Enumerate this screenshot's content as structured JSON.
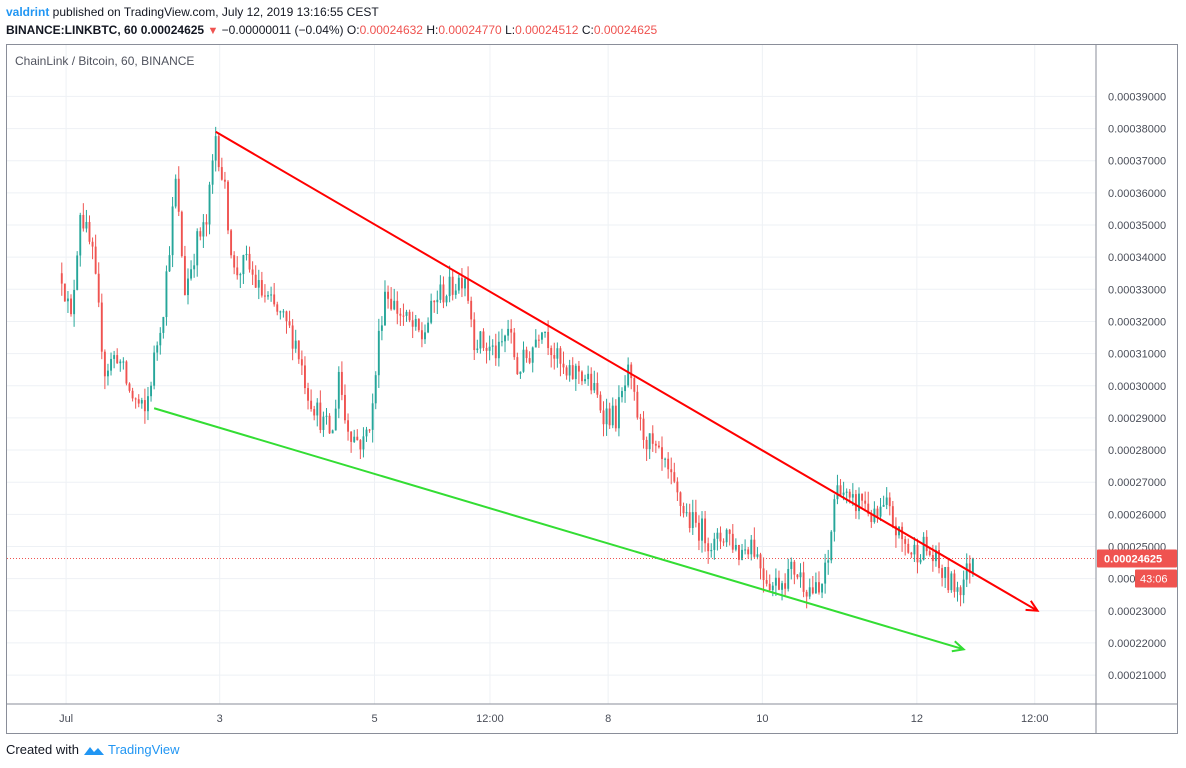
{
  "header": {
    "author": "valdrint",
    "published": " published on TradingView.com, July 12, 2019 13:16:55 CEST"
  },
  "quote": {
    "symbol": "BINANCE:LINKBTC, 60",
    "last": "0.00024625",
    "down_arrow": "▼",
    "change": "−0.00000011 (−0.04%)",
    "o_label": "O:",
    "o": "0.00024632",
    "h_label": "H:",
    "h": "0.00024770",
    "l_label": "L:",
    "l": "0.00024512",
    "c_label": "C:",
    "c": "0.00024625"
  },
  "footer": {
    "created_with": "Created with",
    "brand": "TradingView"
  },
  "colors": {
    "up": "#26a69a",
    "down": "#ef5350",
    "resistance": "#ff0000",
    "support": "#33dd33",
    "grid": "#eef1f5"
  },
  "chart_data": {
    "type": "candlestick",
    "title": "ChainLink / Bitcoin, 60, BINANCE",
    "interval": "60",
    "y_ticks": [
      "0.00021000",
      "0.00022000",
      "0.00023000",
      "0.00024000",
      "0.00025000",
      "0.00026000",
      "0.00027000",
      "0.00028000",
      "0.00029000",
      "0.00030000",
      "0.00031000",
      "0.00032000",
      "0.00033000",
      "0.00034000",
      "0.00035000",
      "0.00036000",
      "0.00037000",
      "0.00038000",
      "0.00039000"
    ],
    "ylim": [
      0.000201,
      0.000406
    ],
    "x_ticks": [
      {
        "label": "Jul",
        "t": 1.4
      },
      {
        "label": "3",
        "t": 51.3
      },
      {
        "label": "5",
        "t": 101.6
      },
      {
        "label": "12:00",
        "t": 139.1
      },
      {
        "label": "8",
        "t": 177.5
      },
      {
        "label": "10",
        "t": 227.6
      },
      {
        "label": "12",
        "t": 277.8
      },
      {
        "label": "12:00",
        "t": 316.1
      }
    ],
    "xlim": [
      -17.8,
      336
    ],
    "price_label": "0.00024625",
    "countdown": "43:06",
    "last_price": 0.00024625,
    "anchors": [
      [
        0,
        0.000335
      ],
      [
        3,
        0.00032
      ],
      [
        6,
        0.000355
      ],
      [
        10,
        0.00034
      ],
      [
        14,
        0.000305
      ],
      [
        18,
        0.00031
      ],
      [
        22,
        0.000298
      ],
      [
        27,
        0.000291
      ],
      [
        33,
        0.000325
      ],
      [
        37,
        0.000363
      ],
      [
        40,
        0.00033
      ],
      [
        44,
        0.000345
      ],
      [
        47,
        0.00035
      ],
      [
        50,
        0.000378
      ],
      [
        53,
        0.00036
      ],
      [
        56,
        0.000335
      ],
      [
        60,
        0.000338
      ],
      [
        64,
        0.00033
      ],
      [
        68,
        0.000325
      ],
      [
        72,
        0.00032
      ],
      [
        76,
        0.000314
      ],
      [
        80,
        0.000298
      ],
      [
        85,
        0.000288
      ],
      [
        88,
        0.000285
      ],
      [
        90,
        0.000305
      ],
      [
        92,
        0.00029
      ],
      [
        95,
        0.000284
      ],
      [
        98,
        0.000282
      ],
      [
        101,
        0.000293
      ],
      [
        103,
        0.000315
      ],
      [
        105,
        0.00033
      ],
      [
        108,
        0.000325
      ],
      [
        112,
        0.00032
      ],
      [
        117,
        0.000315
      ],
      [
        122,
        0.000328
      ],
      [
        126,
        0.00033
      ],
      [
        131,
        0.000335
      ],
      [
        134,
        0.000315
      ],
      [
        138,
        0.000312
      ],
      [
        142,
        0.00031
      ],
      [
        145,
        0.000318
      ],
      [
        148,
        0.000305
      ],
      [
        152,
        0.00031
      ],
      [
        156,
        0.00032
      ],
      [
        160,
        0.00031
      ],
      [
        164,
        0.000302
      ],
      [
        168,
        0.000305
      ],
      [
        172,
        0.0003
      ],
      [
        176,
        0.000292
      ],
      [
        180,
        0.00029
      ],
      [
        184,
        0.000303
      ],
      [
        186,
        0.000295
      ],
      [
        188,
        0.000287
      ],
      [
        192,
        0.00028
      ],
      [
        196,
        0.000274
      ],
      [
        200,
        0.000265
      ],
      [
        204,
        0.000258
      ],
      [
        208,
        0.000255
      ],
      [
        212,
        0.00025
      ],
      [
        216,
        0.000255
      ],
      [
        220,
        0.000248
      ],
      [
        224,
        0.000252
      ],
      [
        228,
        0.000242
      ],
      [
        231,
        0.000238
      ],
      [
        234,
        0.00024
      ],
      [
        238,
        0.000243
      ],
      [
        242,
        0.000238
      ],
      [
        246,
        0.000235
      ],
      [
        249,
        0.000245
      ],
      [
        251,
        0.000265
      ],
      [
        253,
        0.00027
      ],
      [
        256,
        0.000262
      ],
      [
        260,
        0.000265
      ],
      [
        264,
        0.000258
      ],
      [
        268,
        0.000262
      ],
      [
        272,
        0.000253
      ],
      [
        276,
        0.000248
      ],
      [
        280,
        0.00025
      ],
      [
        284,
        0.000245
      ],
      [
        287,
        0.00024
      ],
      [
        289,
        0.000238
      ],
      [
        292,
        0.000238
      ],
      [
        296,
        0.000246
      ]
    ],
    "trend_lines": [
      {
        "name": "resistance",
        "from": [
          50,
          0.000379
        ],
        "to": [
          317,
          0.00023
        ]
      },
      {
        "name": "support",
        "from": [
          30,
          0.000293
        ],
        "to": [
          293,
          0.000218
        ]
      }
    ]
  }
}
